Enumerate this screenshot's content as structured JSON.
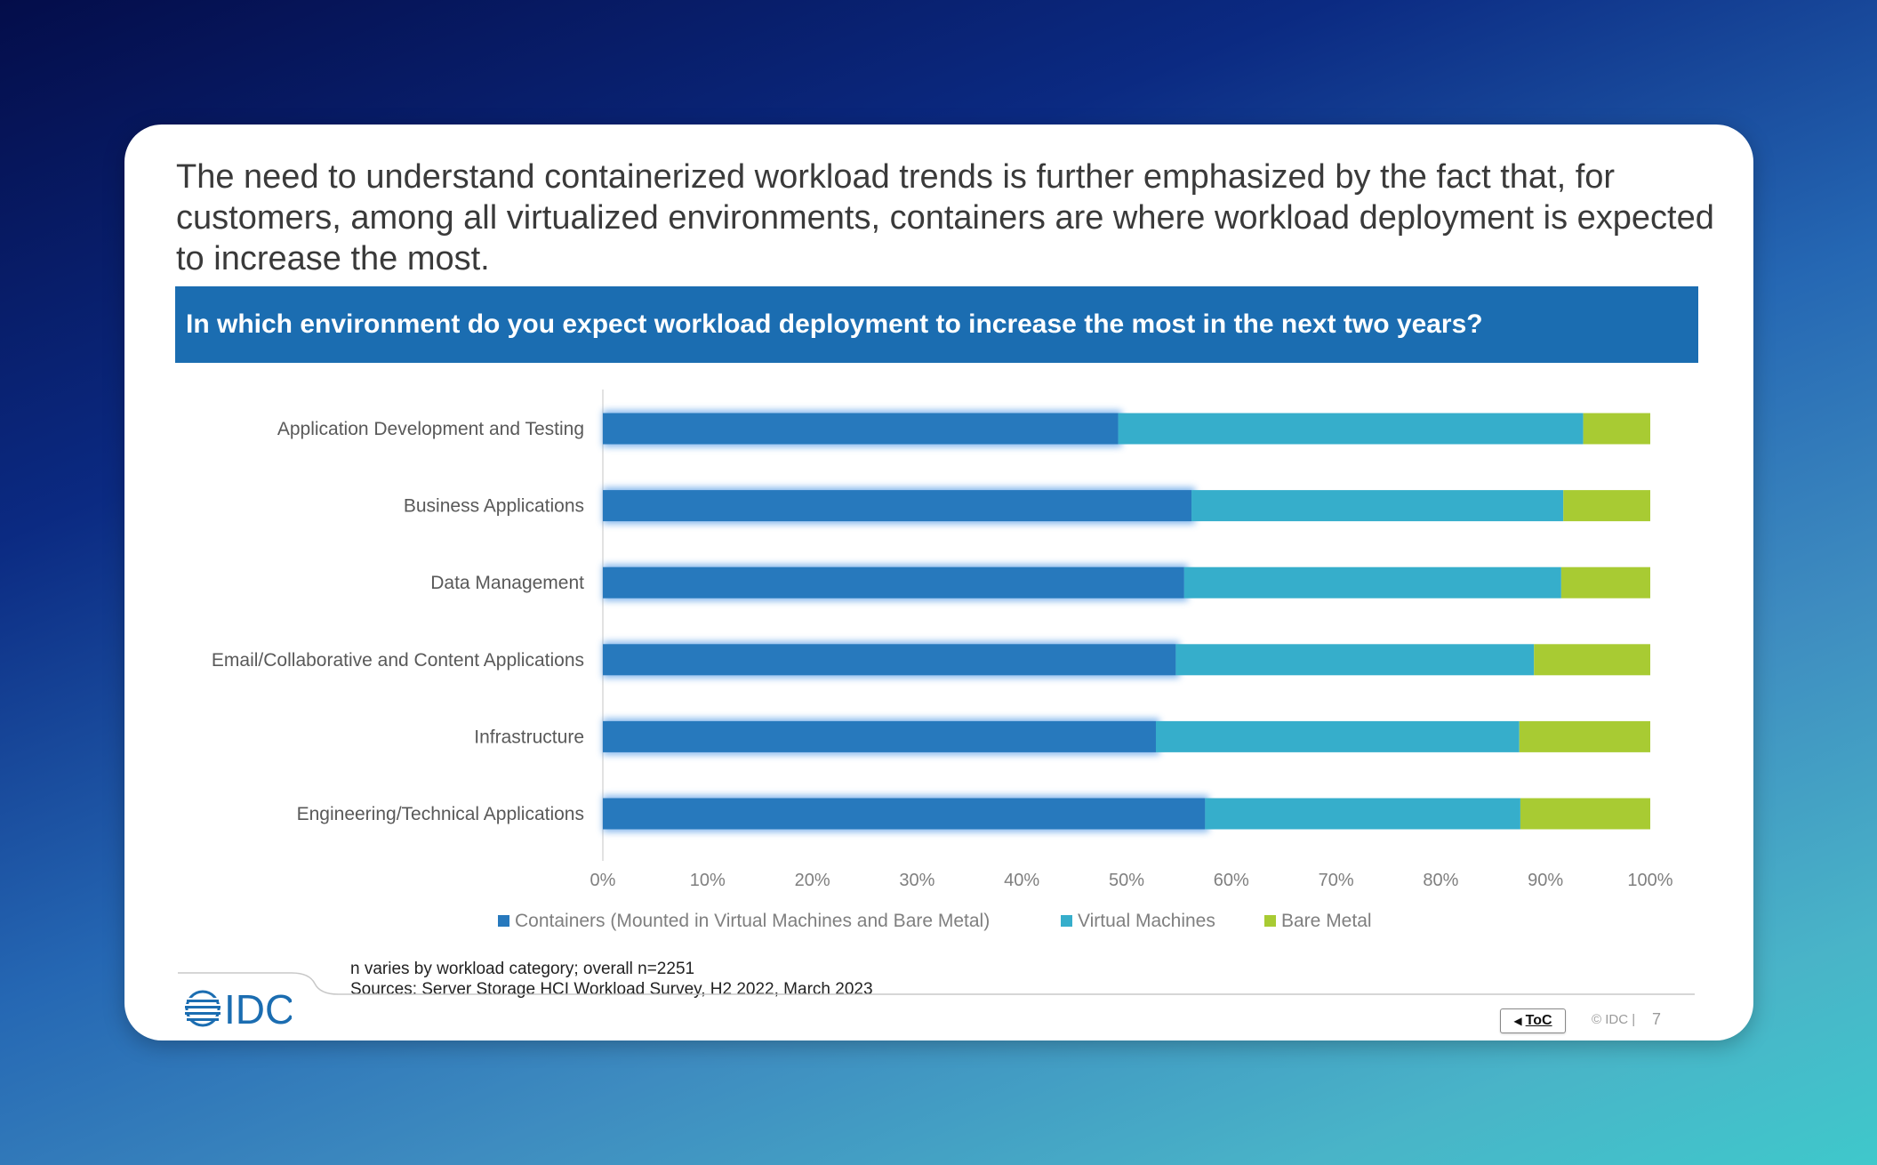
{
  "intro_text": "The need to understand containerized workload trends is further emphasized by the fact that, for customers, among all virtualized environments, containers are where workload deployment is expected to increase the most.",
  "question": "In which environment do you expect workload  deployment to increase the most in the next two years?",
  "colors": {
    "containers": "#2779bd",
    "virtual_machines": "#36aecb",
    "bare_metal": "#a8cb33",
    "question_bar": "#1b6db1"
  },
  "chart_data": {
    "type": "bar",
    "orientation": "horizontal",
    "stacked": "percent",
    "categories": [
      "Application Development and Testing",
      "Business Applications",
      "Data Management",
      "Email/Collaborative and Content Applications",
      "Infrastructure",
      "Engineering/Technical Applications"
    ],
    "series": [
      {
        "name": "Containers (Mounted in Virtual Machines and Bare Metal)",
        "values": [
          49.2,
          56.2,
          55.5,
          54.7,
          52.8,
          57.5
        ]
      },
      {
        "name": "Virtual Machines",
        "values": [
          44.4,
          35.5,
          36.0,
          34.2,
          34.7,
          30.1
        ]
      },
      {
        "name": "Bare Metal",
        "values": [
          6.4,
          8.3,
          8.5,
          11.1,
          12.5,
          12.4
        ]
      }
    ],
    "x_ticks": [
      "0%",
      "10%",
      "20%",
      "30%",
      "40%",
      "50%",
      "60%",
      "70%",
      "80%",
      "90%",
      "100%"
    ],
    "xlim": [
      0,
      100
    ],
    "title": "In which environment do you expect workload  deployment to increase the most in the next two years?",
    "xlabel": "",
    "ylabel": "",
    "legend_position": "bottom",
    "grid": false
  },
  "footnote": {
    "line1": "n varies by workload category; overall n=2251",
    "line2": "Sources: Server Storage HCI Workload Survey, H2 2022, March 2023"
  },
  "logo_text": "IDC",
  "nav": {
    "toc_label": "ToC",
    "toc_arrow": "◀"
  },
  "copyright": "© IDC |",
  "page_number": "7"
}
